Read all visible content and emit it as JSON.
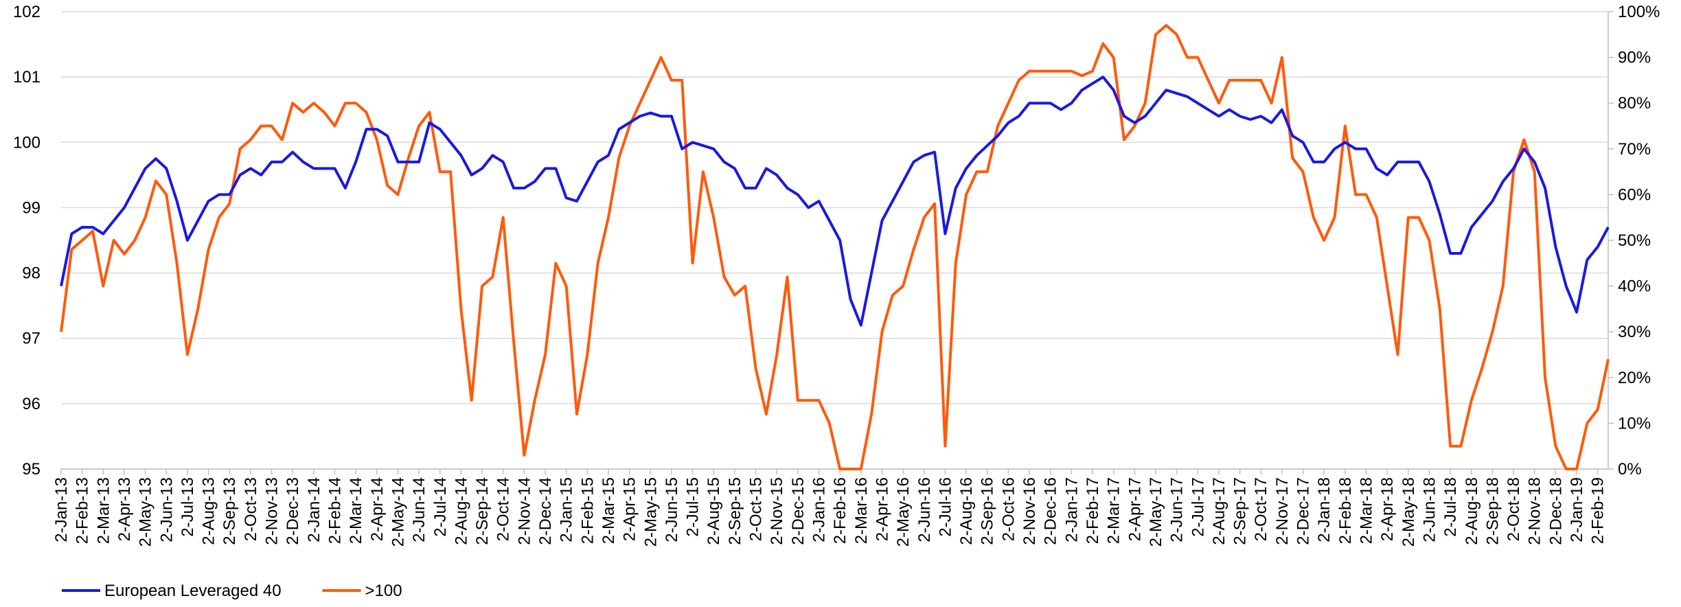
{
  "chart_data": {
    "type": "line",
    "categories": [
      "2-Jan-13",
      null,
      "2-Feb-13",
      null,
      "2-Mar-13",
      null,
      "2-Apr-13",
      null,
      "2-May-13",
      null,
      "2-Jun-13",
      null,
      "2-Jul-13",
      null,
      "2-Aug-13",
      null,
      "2-Sep-13",
      null,
      "2-Oct-13",
      null,
      "2-Nov-13",
      null,
      "2-Dec-13",
      null,
      "2-Jan-14",
      null,
      "2-Feb-14",
      null,
      "2-Mar-14",
      null,
      "2-Apr-14",
      null,
      "2-May-14",
      null,
      "2-Jun-14",
      null,
      "2-Jul-14",
      null,
      "2-Aug-14",
      null,
      "2-Sep-14",
      null,
      "2-Oct-14",
      null,
      "2-Nov-14",
      null,
      "2-Dec-14",
      null,
      "2-Jan-15",
      null,
      "2-Feb-15",
      null,
      "2-Mar-15",
      null,
      "2-Apr-15",
      null,
      "2-May-15",
      null,
      "2-Jun-15",
      null,
      "2-Jul-15",
      null,
      "2-Aug-15",
      null,
      "2-Sep-15",
      null,
      "2-Oct-15",
      null,
      "2-Nov-15",
      null,
      "2-Dec-15",
      null,
      "2-Jan-16",
      null,
      "2-Feb-16",
      null,
      "2-Mar-16",
      null,
      "2-Apr-16",
      null,
      "2-May-16",
      null,
      "2-Jun-16",
      null,
      "2-Jul-16",
      null,
      "2-Aug-16",
      null,
      "2-Sep-16",
      null,
      "2-Oct-16",
      null,
      "2-Nov-16",
      null,
      "2-Dec-16",
      null,
      "2-Jan-17",
      null,
      "2-Feb-17",
      null,
      "2-Mar-17",
      null,
      "2-Apr-17",
      null,
      "2-May-17",
      null,
      "2-Jun-17",
      null,
      "2-Jul-17",
      null,
      "2-Aug-17",
      null,
      "2-Sep-17",
      null,
      "2-Oct-17",
      null,
      "2-Nov-17",
      null,
      "2-Dec-17",
      null,
      "2-Jan-18",
      null,
      "2-Feb-18",
      null,
      "2-Mar-18",
      null,
      "2-Apr-18",
      null,
      "2-May-18",
      null,
      "2-Jun-18",
      null,
      "2-Jul-18",
      null,
      "2-Aug-18",
      null,
      "2-Sep-18",
      null,
      "2-Oct-18",
      null,
      "2-Nov-18",
      null,
      "2-Dec-18",
      null,
      "2-Jan-19",
      null,
      "2-Feb-19",
      null
    ],
    "series": [
      {
        "name": "European Leveraged 40",
        "color": "#1a1ae0",
        "axis": "y",
        "values": [
          97.8,
          98.6,
          98.7,
          98.7,
          98.6,
          98.8,
          99.0,
          99.3,
          99.6,
          99.75,
          99.6,
          99.1,
          98.5,
          98.8,
          99.1,
          99.2,
          99.2,
          99.5,
          99.6,
          99.5,
          99.7,
          99.7,
          99.85,
          99.7,
          99.6,
          99.6,
          99.6,
          99.3,
          99.7,
          100.2,
          100.2,
          100.1,
          99.7,
          99.7,
          99.7,
          100.3,
          100.2,
          100.0,
          99.8,
          99.5,
          99.6,
          99.8,
          99.7,
          99.3,
          99.3,
          99.4,
          99.6,
          99.6,
          99.15,
          99.1,
          99.4,
          99.7,
          99.8,
          100.2,
          100.3,
          100.4,
          100.45,
          100.4,
          100.4,
          99.9,
          100.0,
          99.95,
          99.9,
          99.7,
          99.6,
          99.3,
          99.3,
          99.6,
          99.5,
          99.3,
          99.2,
          99.0,
          99.1,
          98.8,
          98.5,
          97.6,
          97.2,
          98.0,
          98.8,
          99.1,
          99.4,
          99.7,
          99.8,
          99.85,
          98.6,
          99.3,
          99.6,
          99.8,
          99.95,
          100.1,
          100.3,
          100.4,
          100.6,
          100.6,
          100.6,
          100.5,
          100.6,
          100.8,
          100.9,
          101.0,
          100.8,
          100.4,
          100.3,
          100.4,
          100.6,
          100.8,
          100.75,
          100.7,
          100.6,
          100.5,
          100.4,
          100.5,
          100.4,
          100.35,
          100.4,
          100.3,
          100.5,
          100.1,
          100.0,
          99.7,
          99.7,
          99.9,
          100.0,
          99.9,
          99.9,
          99.6,
          99.5,
          99.7,
          99.7,
          99.7,
          99.4,
          98.9,
          98.3,
          98.3,
          98.7,
          98.9,
          99.1,
          99.4,
          99.6,
          99.9,
          99.7,
          99.3,
          98.4,
          97.8,
          97.4,
          98.2,
          98.4,
          98.7
        ]
      },
      {
        "name": ">100",
        "color": "#ff5a0a",
        "axis": "y2",
        "values": [
          30,
          48,
          50,
          52,
          40,
          50,
          47,
          50,
          55,
          63,
          60,
          45,
          25,
          35,
          48,
          55,
          58,
          70,
          72,
          75,
          75,
          72,
          80,
          78,
          80,
          78,
          75,
          80,
          80,
          78,
          72,
          62,
          60,
          68,
          75,
          78,
          65,
          65,
          35,
          15,
          40,
          42,
          55,
          28,
          3,
          15,
          25,
          45,
          40,
          12,
          25,
          45,
          55,
          68,
          75,
          80,
          85,
          90,
          85,
          85,
          45,
          65,
          55,
          42,
          38,
          40,
          22,
          12,
          25,
          42,
          15,
          15,
          15,
          10,
          0,
          0,
          0,
          12,
          30,
          38,
          40,
          48,
          55,
          58,
          5,
          45,
          60,
          65,
          65,
          75,
          80,
          85,
          87,
          87,
          87,
          87,
          87,
          86,
          87,
          93,
          90,
          72,
          75,
          80,
          95,
          97,
          95,
          90,
          90,
          85,
          80,
          85,
          85,
          85,
          85,
          80,
          90,
          68,
          65,
          55,
          50,
          55,
          75,
          60,
          60,
          55,
          40,
          25,
          55,
          55,
          50,
          35,
          5,
          5,
          15,
          22,
          30,
          40,
          65,
          72,
          65,
          20,
          5,
          0,
          0,
          10,
          13,
          24
        ]
      }
    ],
    "ylim": [
      95,
      102
    ],
    "yticks": [
      95,
      96,
      97,
      98,
      99,
      100,
      101,
      102
    ],
    "y2lim": [
      0,
      100
    ],
    "y2ticks": [
      {
        "value": 0,
        "label": "0%"
      },
      {
        "value": 10,
        "label": "10%"
      },
      {
        "value": 20,
        "label": "20%"
      },
      {
        "value": 30,
        "label": "30%"
      },
      {
        "value": 40,
        "label": "40%"
      },
      {
        "value": 50,
        "label": "50%"
      },
      {
        "value": 60,
        "label": "60%"
      },
      {
        "value": 70,
        "label": "70%"
      },
      {
        "value": 80,
        "label": "80%"
      },
      {
        "value": 90,
        "label": "90%"
      },
      {
        "value": 100,
        "label": "100%"
      }
    ],
    "grid": true,
    "legend": "bottom-left"
  }
}
